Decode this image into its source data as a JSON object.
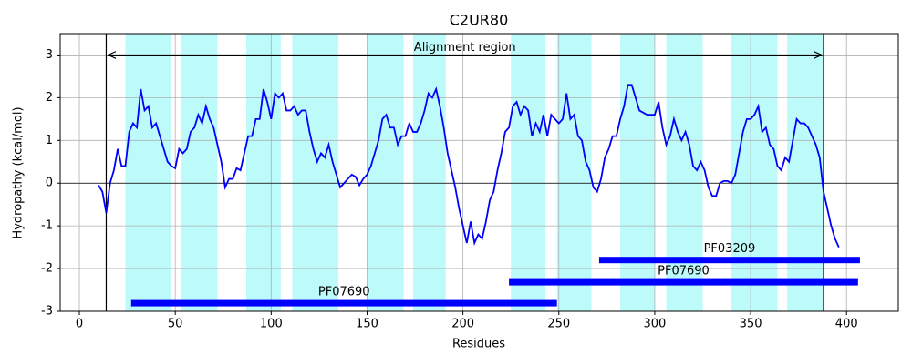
{
  "chart_data": {
    "type": "line",
    "title": "C2UR80",
    "xlabel": "Residues",
    "ylabel": "Hydropathy (kcal/mol)",
    "color": "#0000ff",
    "grid": true,
    "xlim": [
      -10,
      427
    ],
    "ylim": [
      -3,
      3.5
    ],
    "xticks": [
      0,
      50,
      100,
      150,
      200,
      250,
      300,
      350,
      400
    ],
    "yticks": [
      -3,
      -2,
      -1,
      0,
      1,
      2,
      3
    ],
    "x": [
      10,
      12,
      14,
      16,
      18,
      20,
      22,
      24,
      26,
      28,
      30,
      32,
      34,
      36,
      38,
      40,
      42,
      44,
      46,
      48,
      50,
      52,
      54,
      56,
      58,
      60,
      62,
      64,
      66,
      68,
      70,
      72,
      74,
      76,
      78,
      80,
      82,
      84,
      86,
      88,
      90,
      92,
      94,
      96,
      98,
      100,
      102,
      104,
      106,
      108,
      110,
      112,
      114,
      116,
      118,
      120,
      122,
      124,
      126,
      128,
      130,
      132,
      134,
      136,
      138,
      140,
      142,
      144,
      146,
      148,
      150,
      152,
      154,
      156,
      158,
      160,
      162,
      164,
      166,
      168,
      170,
      172,
      174,
      176,
      178,
      180,
      182,
      184,
      186,
      188,
      190,
      192,
      194,
      196,
      198,
      200,
      202,
      204,
      206,
      208,
      210,
      212,
      214,
      216,
      218,
      220,
      222,
      224,
      226,
      228,
      230,
      232,
      234,
      236,
      238,
      240,
      242,
      244,
      246,
      248,
      250,
      252,
      254,
      256,
      258,
      260,
      262,
      264,
      266,
      268,
      270,
      272,
      274,
      276,
      278,
      280,
      282,
      284,
      286,
      288,
      290,
      292,
      294,
      296,
      298,
      300,
      302,
      304,
      306,
      308,
      310,
      312,
      314,
      316,
      318,
      320,
      322,
      324,
      326,
      328,
      330,
      332,
      334,
      336,
      338,
      340,
      342,
      344,
      346,
      348,
      350,
      352,
      354,
      356,
      358,
      360,
      362,
      364,
      366,
      368,
      370,
      372,
      374,
      376,
      378,
      380,
      382,
      384,
      386,
      388,
      390,
      392,
      394,
      396
    ],
    "values": [
      -0.05,
      -0.2,
      -0.7,
      0.0,
      0.3,
      0.8,
      0.4,
      0.4,
      1.2,
      1.4,
      1.3,
      2.2,
      1.7,
      1.8,
      1.3,
      1.4,
      1.1,
      0.8,
      0.5,
      0.4,
      0.35,
      0.8,
      0.7,
      0.8,
      1.2,
      1.3,
      1.6,
      1.4,
      1.8,
      1.5,
      1.3,
      0.9,
      0.5,
      -0.1,
      0.1,
      0.1,
      0.35,
      0.3,
      0.7,
      1.1,
      1.1,
      1.5,
      1.5,
      2.2,
      1.9,
      1.5,
      2.1,
      2.0,
      2.1,
      1.7,
      1.7,
      1.8,
      1.6,
      1.7,
      1.7,
      1.2,
      0.8,
      0.5,
      0.7,
      0.6,
      0.9,
      0.5,
      0.2,
      -0.1,
      0.0,
      0.1,
      0.2,
      0.15,
      -0.05,
      0.1,
      0.2,
      0.4,
      0.7,
      1.0,
      1.5,
      1.6,
      1.3,
      1.3,
      0.9,
      1.1,
      1.1,
      1.4,
      1.2,
      1.2,
      1.4,
      1.7,
      2.1,
      2.0,
      2.2,
      1.8,
      1.3,
      0.7,
      0.3,
      -0.1,
      -0.6,
      -1.0,
      -1.4,
      -0.9,
      -1.4,
      -1.2,
      -1.3,
      -0.9,
      -0.4,
      -0.2,
      0.3,
      0.7,
      1.2,
      1.3,
      1.8,
      1.9,
      1.6,
      1.8,
      1.7,
      1.1,
      1.4,
      1.2,
      1.6,
      1.1,
      1.6,
      1.5,
      1.4,
      1.5,
      2.1,
      1.5,
      1.6,
      1.1,
      1.0,
      0.5,
      0.3,
      -0.1,
      -0.2,
      0.1,
      0.6,
      0.8,
      1.1,
      1.1,
      1.5,
      1.8,
      2.3,
      2.3,
      2.0,
      1.7,
      1.65,
      1.6,
      1.6,
      1.6,
      1.9,
      1.3,
      0.9,
      1.1,
      1.5,
      1.2,
      1.0,
      1.2,
      0.9,
      0.4,
      0.3,
      0.5,
      0.3,
      -0.1,
      -0.3,
      -0.3,
      0.0,
      0.05,
      0.05,
      0.0,
      0.2,
      0.7,
      1.2,
      1.5,
      1.5,
      1.6,
      1.8,
      1.2,
      1.3,
      0.9,
      0.8,
      0.4,
      0.3,
      0.6,
      0.5,
      1.0,
      1.5,
      1.4,
      1.4,
      1.3,
      1.1,
      0.9,
      0.6,
      -0.2,
      -0.6,
      -1.0,
      -1.3,
      -1.5
    ],
    "region_color": "#bdfbfb",
    "regions": [
      [
        24,
        48
      ],
      [
        53,
        72
      ],
      [
        87,
        105
      ],
      [
        111,
        135
      ],
      [
        150,
        169
      ],
      [
        174,
        191
      ],
      [
        225,
        243
      ],
      [
        249,
        267
      ],
      [
        282,
        300
      ],
      [
        306,
        325
      ],
      [
        340,
        364
      ],
      [
        369,
        388
      ]
    ],
    "vlines": [
      14,
      388
    ],
    "hline": 0,
    "annotation": {
      "text": "Alignment region",
      "x": [
        14,
        388
      ],
      "y": 3
    },
    "domain_color": "#0000ff",
    "domains": [
      {
        "name": "PF03209",
        "start": 271,
        "end": 407,
        "y": -1.8
      },
      {
        "name": "PF07690",
        "start": 224,
        "end": 406,
        "y": -2.32
      },
      {
        "name": "PF07690",
        "start": 27,
        "end": 249,
        "y": -2.81
      }
    ]
  }
}
